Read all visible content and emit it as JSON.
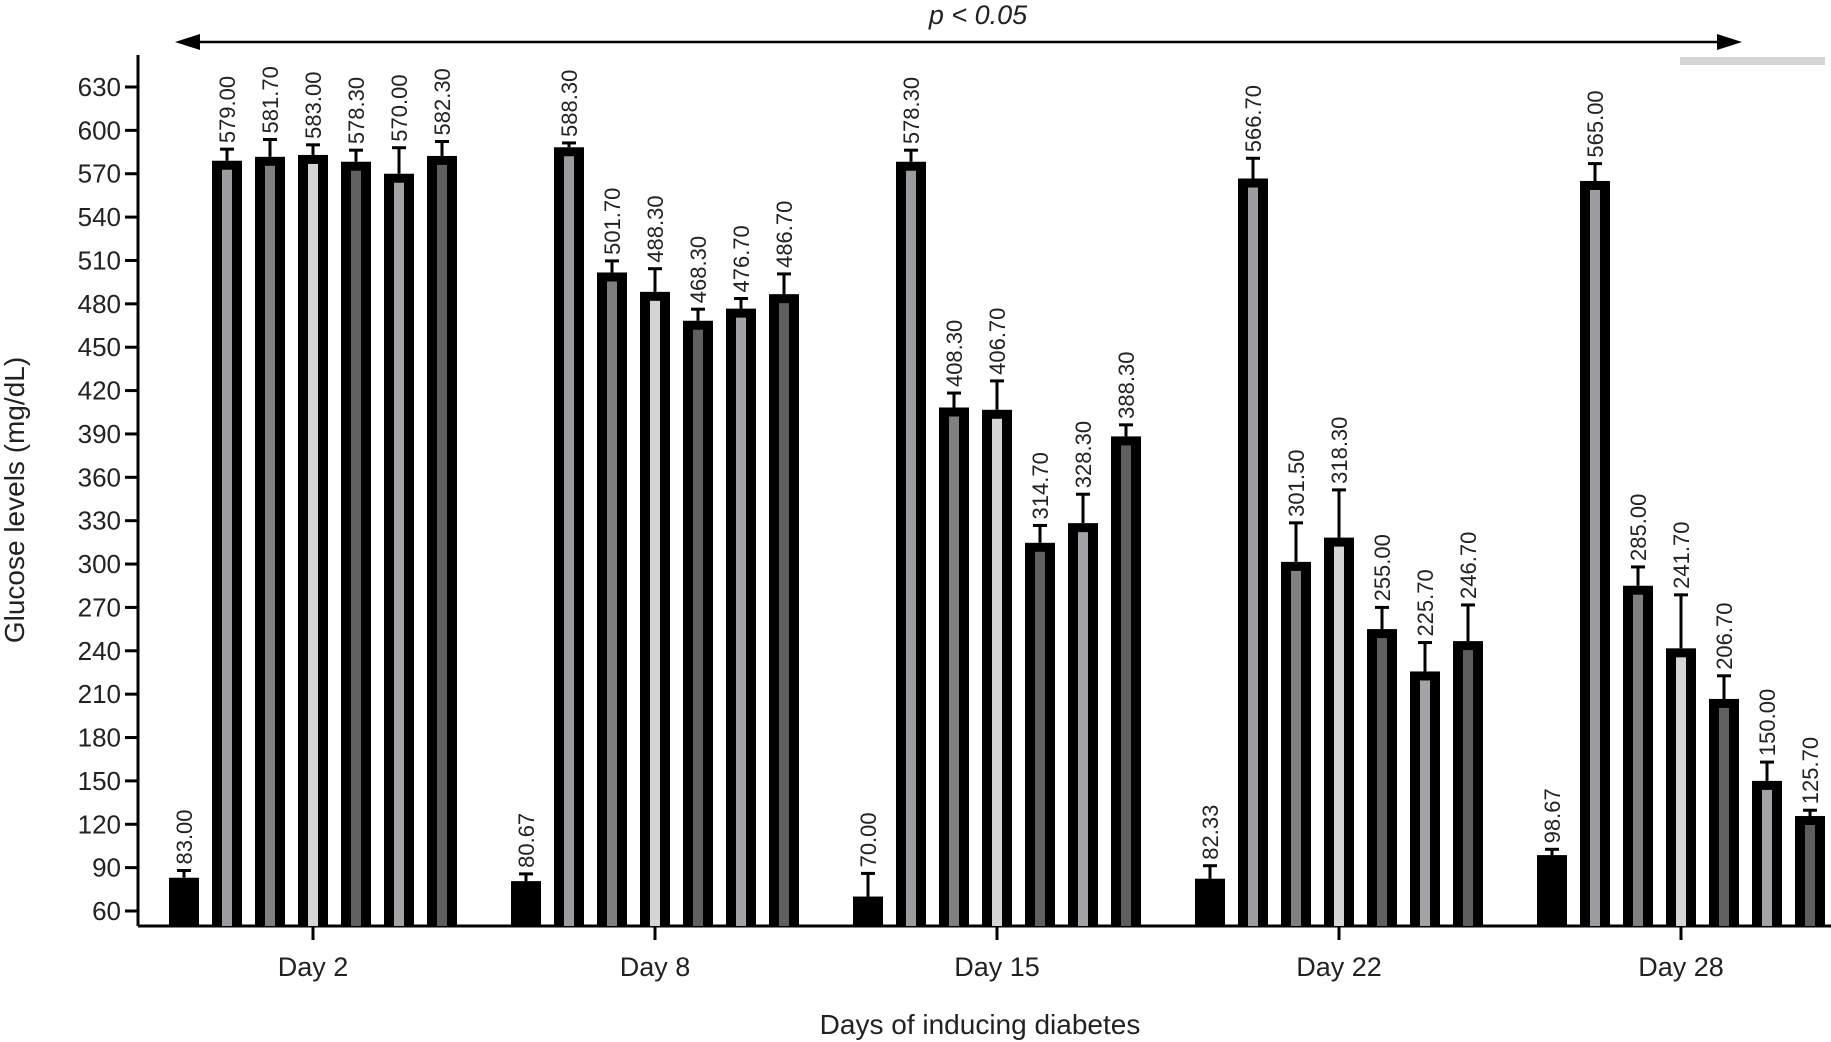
{
  "chart_data": {
    "type": "bar",
    "title": "",
    "annotation": "p < 0.05",
    "xlabel": "Days of inducing diabetes",
    "ylabel": "Glucose levels (mg/dL)",
    "ylim": [
      60,
      630
    ],
    "yticks": [
      60,
      90,
      120,
      150,
      180,
      210,
      240,
      270,
      300,
      330,
      360,
      390,
      420,
      450,
      480,
      510,
      540,
      570,
      600,
      630
    ],
    "categories": [
      "Day 2",
      "Day 8",
      "Day 15",
      "Day 22",
      "Day 28"
    ],
    "series_fill_colors": [
      "#000000",
      "#9c9ca0",
      "#7f7f7f",
      "#d4d4d4",
      "#606060",
      "#a3a3a7",
      "#5e5e5e"
    ],
    "groups": [
      {
        "values": [
          83.0,
          579.0,
          581.7,
          583.0,
          578.3,
          570.0,
          582.3
        ],
        "errors": [
          5,
          8,
          12,
          7,
          8,
          18,
          10
        ],
        "labels": [
          "83.00",
          "579.00",
          "581.70",
          "583.00",
          "578.30",
          "570.00",
          "582.30"
        ]
      },
      {
        "values": [
          80.67,
          588.3,
          501.7,
          488.3,
          468.3,
          476.7,
          486.7
        ],
        "errors": [
          5,
          3,
          8,
          16,
          8,
          7,
          14
        ],
        "labels": [
          "80.67",
          "588.30",
          "501.70",
          "488.30",
          "468.30",
          "476.70",
          "486.70"
        ]
      },
      {
        "values": [
          70.0,
          578.3,
          408.3,
          406.7,
          314.7,
          328.3,
          388.3
        ],
        "errors": [
          16,
          8,
          10,
          20,
          12,
          20,
          8
        ],
        "labels": [
          "70.00",
          "578.30",
          "408.30",
          "406.70",
          "314.70",
          "328.30",
          "388.30"
        ]
      },
      {
        "values": [
          82.33,
          566.7,
          301.5,
          318.3,
          255.0,
          225.7,
          246.7
        ],
        "errors": [
          9,
          14,
          27,
          33,
          15,
          20,
          25
        ],
        "labels": [
          "82.33",
          "566.70",
          "301.50",
          "318.30",
          "255.00",
          "225.70",
          "246.70"
        ]
      },
      {
        "values": [
          98.67,
          565.0,
          285.0,
          241.7,
          206.7,
          150.0,
          125.7
        ],
        "errors": [
          4,
          12,
          13,
          37,
          16,
          13,
          4
        ],
        "labels": [
          "98.67",
          "565.00",
          "285.00",
          "241.70",
          "206.70",
          "150.00",
          "125.70"
        ]
      }
    ]
  }
}
